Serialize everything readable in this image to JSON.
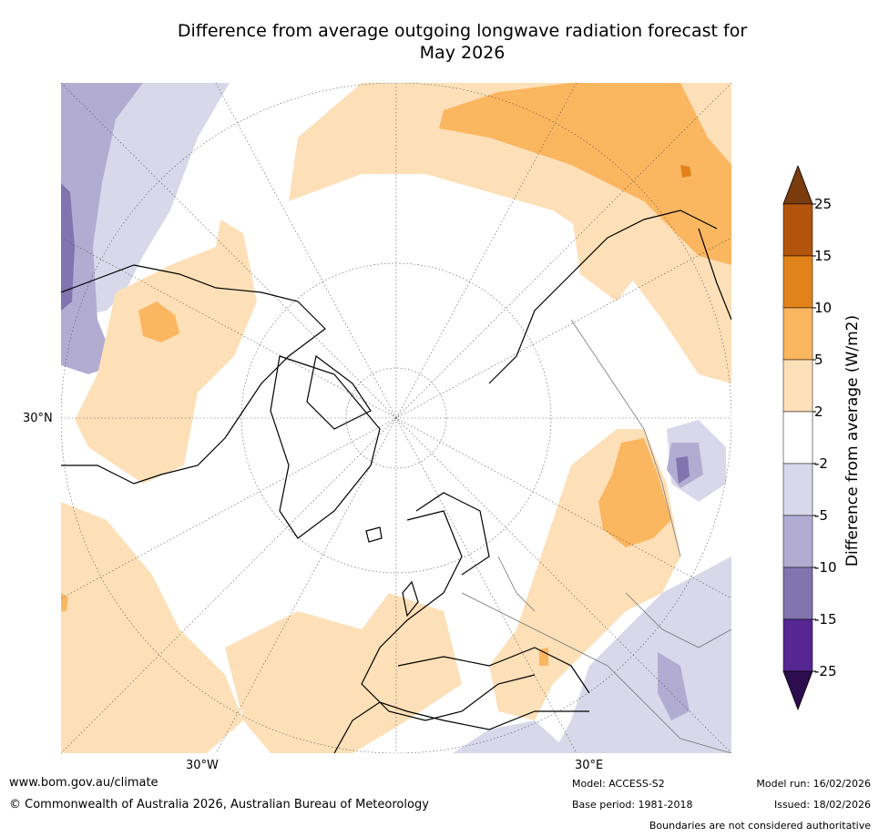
{
  "title": {
    "line1": "Difference from average outgoing longwave radiation forecast for",
    "line2": "May 2026"
  },
  "map": {
    "lat_label": "30°N",
    "lon_labels": [
      "30°W",
      "30°E"
    ],
    "projection": "north-polar-stereographic"
  },
  "colorbar": {
    "title": "Difference from average (W/m2)",
    "ticks": [
      "25",
      "15",
      "10",
      "5",
      "2",
      "-2",
      "-5",
      "-10",
      "-15",
      "-25"
    ],
    "colors": [
      "#7a3b0d",
      "#b3540d",
      "#e2821a",
      "#fbb660",
      "#fde0b8",
      "#ffffff",
      "#d8d8ea",
      "#b2acd2",
      "#8174af",
      "#562691",
      "#2e0d4f"
    ]
  },
  "footer": {
    "website": "www.bom.gov.au/climate",
    "copyright": "© Commonwealth of Australia 2026, Australian Bureau of Meteorology",
    "model": "Model: ACCESS-S2",
    "base_period": "Base period: 1981-2018",
    "model_run": "Model run: 16/02/2026",
    "issued": "Issued: 18/02/2026",
    "disclaimer": "Boundaries are not considered authoritative"
  }
}
